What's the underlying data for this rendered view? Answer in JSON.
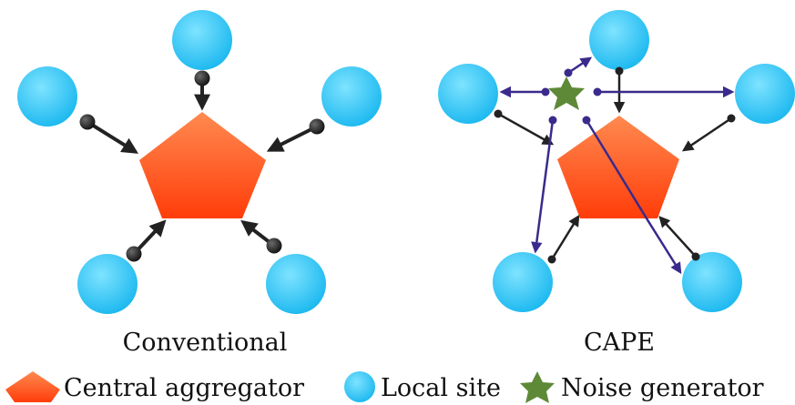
{
  "panels": {
    "conventional": {
      "caption": "Conventional"
    },
    "cape": {
      "caption": "CAPE"
    }
  },
  "legend": {
    "aggregator": {
      "label": "Central aggregator",
      "icon": "pentagon-icon"
    },
    "site": {
      "label": "Local site",
      "icon": "circle-icon"
    },
    "noise": {
      "label": "Noise generator",
      "icon": "star-icon"
    }
  },
  "colors": {
    "aggregator_top": "#ff8a50",
    "aggregator_bottom": "#ff3d0a",
    "site_light": "#7ee3ff",
    "site_dark": "#12b4ee",
    "noise": "#5e8a37",
    "arrow_dark": "#222222",
    "arrow_purple": "#3a2a8c"
  }
}
